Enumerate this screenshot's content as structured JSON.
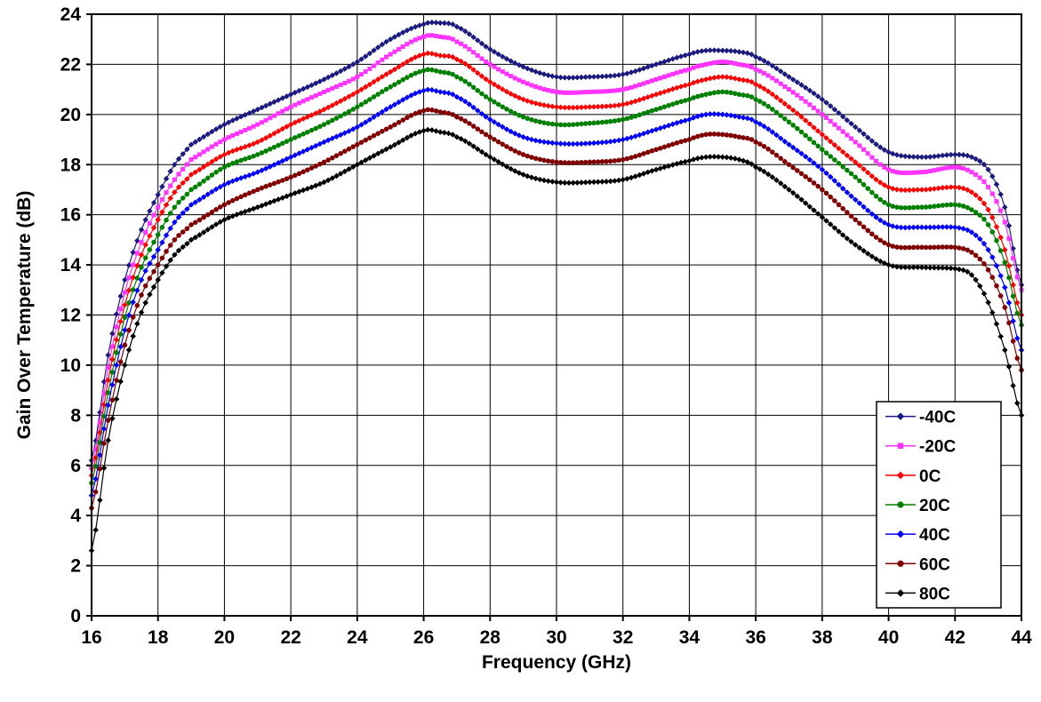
{
  "chart_data": {
    "type": "line",
    "title": "",
    "xlabel": "Frequency (GHz)",
    "ylabel": "Gain Over Temperature (dB)",
    "xlim": [
      16,
      44
    ],
    "ylim": [
      0,
      24
    ],
    "x_ticks": [
      16,
      18,
      20,
      22,
      24,
      26,
      28,
      30,
      32,
      34,
      36,
      38,
      40,
      42,
      44
    ],
    "y_ticks": [
      0,
      2,
      4,
      6,
      8,
      10,
      12,
      14,
      16,
      18,
      20,
      22,
      24
    ],
    "grid": true,
    "legend_position": "bottom-right",
    "x": [
      16,
      16.5,
      17,
      17.5,
      18,
      18.5,
      19,
      20,
      21,
      22,
      23,
      24,
      25,
      26,
      26.5,
      27,
      28,
      29,
      30,
      31,
      32,
      33,
      34,
      34.5,
      35,
      35.5,
      36,
      37,
      38,
      39,
      40,
      41,
      42,
      42.5,
      43,
      43.5,
      44
    ],
    "series": [
      {
        "name": "-40C",
        "color": "#1a1a80",
        "marker": "diamond",
        "values": [
          6.2,
          10.4,
          13.4,
          15.4,
          16.8,
          18.0,
          18.8,
          19.6,
          20.2,
          20.8,
          21.4,
          22.1,
          23.0,
          23.6,
          23.65,
          23.5,
          22.6,
          21.9,
          21.5,
          21.5,
          21.6,
          22.0,
          22.4,
          22.55,
          22.55,
          22.5,
          22.3,
          21.5,
          20.6,
          19.5,
          18.5,
          18.3,
          18.4,
          18.3,
          17.8,
          16.3,
          13.2
        ]
      },
      {
        "name": "-20C",
        "color": "#ff33ff",
        "marker": "square",
        "values": [
          5.9,
          9.9,
          12.9,
          14.9,
          16.3,
          17.4,
          18.2,
          19.0,
          19.6,
          20.3,
          20.9,
          21.5,
          22.4,
          23.1,
          23.1,
          22.9,
          22.0,
          21.3,
          20.9,
          20.9,
          21.0,
          21.4,
          21.8,
          22.0,
          22.1,
          22.0,
          21.8,
          21.0,
          20.0,
          18.9,
          17.8,
          17.7,
          17.9,
          17.7,
          17.1,
          15.7,
          13.0
        ]
      },
      {
        "name": "0C",
        "color": "#ff0000",
        "marker": "diamond",
        "values": [
          5.6,
          9.4,
          12.4,
          14.4,
          15.8,
          16.9,
          17.6,
          18.4,
          18.9,
          19.6,
          20.2,
          20.9,
          21.7,
          22.4,
          22.35,
          22.2,
          21.3,
          20.6,
          20.3,
          20.3,
          20.4,
          20.8,
          21.2,
          21.4,
          21.5,
          21.4,
          21.2,
          20.3,
          19.2,
          18.1,
          17.1,
          17.0,
          17.1,
          16.9,
          16.2,
          14.6,
          12.0
        ]
      },
      {
        "name": "20C",
        "color": "#008000",
        "marker": "circle",
        "values": [
          5.3,
          8.9,
          11.9,
          13.9,
          15.2,
          16.3,
          17.0,
          17.9,
          18.4,
          19.0,
          19.6,
          20.3,
          21.1,
          21.75,
          21.7,
          21.5,
          20.6,
          19.9,
          19.6,
          19.65,
          19.8,
          20.2,
          20.6,
          20.8,
          20.9,
          20.8,
          20.6,
          19.7,
          18.6,
          17.5,
          16.4,
          16.3,
          16.4,
          16.2,
          15.6,
          14.1,
          11.6
        ]
      },
      {
        "name": "40C",
        "color": "#0000ff",
        "marker": "diamond",
        "values": [
          4.8,
          8.4,
          11.4,
          13.4,
          14.6,
          15.7,
          16.4,
          17.2,
          17.7,
          18.3,
          18.9,
          19.5,
          20.3,
          20.95,
          20.9,
          20.7,
          19.8,
          19.1,
          18.85,
          18.85,
          19.0,
          19.4,
          19.8,
          20.0,
          20.0,
          19.9,
          19.7,
          18.8,
          17.8,
          16.6,
          15.6,
          15.5,
          15.5,
          15.3,
          14.6,
          13.1,
          10.6
        ]
      },
      {
        "name": "60C",
        "color": "#800000",
        "marker": "circle",
        "values": [
          4.3,
          7.8,
          10.8,
          12.8,
          14.0,
          15.0,
          15.6,
          16.4,
          17.0,
          17.5,
          18.1,
          18.8,
          19.5,
          20.15,
          20.1,
          19.9,
          19.1,
          18.4,
          18.1,
          18.1,
          18.2,
          18.6,
          19.0,
          19.2,
          19.2,
          19.1,
          18.9,
          18.0,
          17.0,
          15.8,
          14.8,
          14.7,
          14.7,
          14.5,
          13.8,
          12.3,
          9.8
        ]
      },
      {
        "name": "80C",
        "color": "#000000",
        "marker": "diamond",
        "values": [
          2.6,
          7.0,
          10.0,
          12.1,
          13.4,
          14.4,
          15.0,
          15.8,
          16.3,
          16.8,
          17.3,
          18.0,
          18.7,
          19.35,
          19.3,
          19.1,
          18.3,
          17.6,
          17.3,
          17.3,
          17.4,
          17.8,
          18.15,
          18.3,
          18.3,
          18.2,
          17.9,
          17.0,
          15.9,
          14.8,
          14.0,
          13.9,
          13.85,
          13.6,
          12.5,
          10.6,
          8.0
        ]
      }
    ]
  }
}
